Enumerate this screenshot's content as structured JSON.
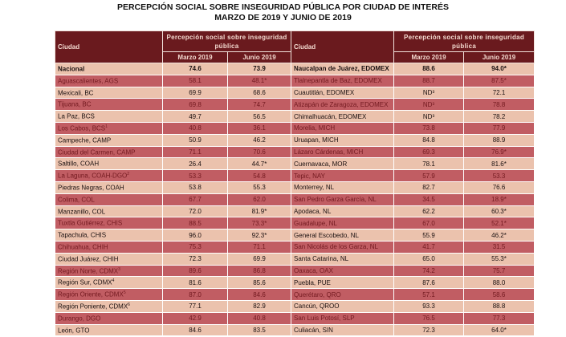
{
  "title": "PERCEPCIÓN SOCIAL SOBRE INSEGURIDAD PÚBLICA POR CIUDAD DE INTERÉS",
  "subtitle": "MARZO DE 2019 Y JUNIO DE 2019",
  "header": {
    "city": "Ciudad",
    "group": "Percepción social sobre inseguridad pública",
    "march": "Marzo 2019",
    "june": "Junio 2019"
  },
  "colors": {
    "header_bg": "#6a1a1e",
    "row_light": "#ebc2ad",
    "row_dark": "#c15d63"
  },
  "left_rows": [
    {
      "city": "Nacional",
      "sup": "",
      "march": "74.6",
      "june": "73.9"
    },
    {
      "city": "Aguascalientes, AGS",
      "sup": "",
      "march": "58.1",
      "june": "48.1*"
    },
    {
      "city": "Mexicali, BC",
      "sup": "",
      "march": "69.9",
      "june": "68.6"
    },
    {
      "city": "Tijuana, BC",
      "sup": "",
      "march": "69.8",
      "june": "74.7"
    },
    {
      "city": "La Paz, BCS",
      "sup": "",
      "march": "49.7",
      "june": "56.5"
    },
    {
      "city": "Los Cabos, BCS",
      "sup": "1",
      "march": "40.8",
      "june": "36.1"
    },
    {
      "city": "Campeche, CAMP",
      "sup": "",
      "march": "50.9",
      "june": "46.2"
    },
    {
      "city": "Ciudad del Carmen, CAMP",
      "sup": "",
      "march": "71.1",
      "june": "70.6"
    },
    {
      "city": "Saltillo, COAH",
      "sup": "",
      "march": "26.4",
      "june": "44.7*"
    },
    {
      "city": "La Laguna, COAH-DGO",
      "sup": "2",
      "march": "53.3",
      "june": "54.8"
    },
    {
      "city": "Piedras Negras, COAH",
      "sup": "",
      "march": "53.8",
      "june": "55.3"
    },
    {
      "city": "Colima, COL",
      "sup": "",
      "march": "67.7",
      "june": "62.0"
    },
    {
      "city": "Manzanillo, COL",
      "sup": "",
      "march": "72.0",
      "june": "81.9*"
    },
    {
      "city": "Tuxtla Gutiérrez, CHIS",
      "sup": "",
      "march": "88.5",
      "june": "73.3*"
    },
    {
      "city": "Tapachula, CHIS",
      "sup": "",
      "march": "96.0",
      "june": "92.3*"
    },
    {
      "city": "Chihuahua, CHIH",
      "sup": "",
      "march": "75.3",
      "june": "71.1"
    },
    {
      "city": "Ciudad Juárez, CHIH",
      "sup": "",
      "march": "72.3",
      "june": "69.9"
    },
    {
      "city": "Región Norte, CDMX",
      "sup": "3",
      "march": "89.6",
      "june": "86.8"
    },
    {
      "city": "Región Sur, CDMX",
      "sup": "4",
      "march": "81.6",
      "june": "85.6"
    },
    {
      "city": "Región Oriente, CDMX",
      "sup": "5",
      "march": "87.0",
      "june": "84.6"
    },
    {
      "city": "Región Poniente, CDMX",
      "sup": "6",
      "march": "77.1",
      "june": "82.9"
    },
    {
      "city": "Durango, DGO",
      "sup": "",
      "march": "42.9",
      "june": "40.8"
    },
    {
      "city": "León, GTO",
      "sup": "",
      "march": "84.6",
      "june": "83.5"
    }
  ],
  "right_rows": [
    {
      "city": "Naucalpan de Juárez, EDOMEX",
      "march": "88.6",
      "june": "94.0*"
    },
    {
      "city": "Tlalnepantla de Baz, EDOMEX",
      "march": "88.7",
      "june": "87.5*"
    },
    {
      "city": "Cuautitlán, EDOMEX",
      "march": "ND³",
      "june": "72.1"
    },
    {
      "city": "Atizapán de Zaragoza, EDOMEX",
      "march": "ND³",
      "june": "78.8"
    },
    {
      "city": "Chimalhuacán, EDOMEX",
      "march": "ND³",
      "june": "78.2"
    },
    {
      "city": "Morelia, MICH",
      "march": "73.8",
      "june": "77.9"
    },
    {
      "city": "Uruapan, MICH",
      "march": "84.8",
      "june": "88.9"
    },
    {
      "city": "Lázaro Cárdenas, MICH",
      "march": "69.3",
      "june": "76.9*"
    },
    {
      "city": "Cuernavaca, MOR",
      "march": "78.1",
      "june": "81.6*"
    },
    {
      "city": "Tepic, NAY",
      "march": "57.9",
      "june": "53.3"
    },
    {
      "city": "Monterrey, NL",
      "march": "82.7",
      "june": "76.6"
    },
    {
      "city": "San Pedro Garza García, NL",
      "march": "34.5",
      "june": "18.9*"
    },
    {
      "city": "Apodaca, NL",
      "march": "62.2",
      "june": "60.3*"
    },
    {
      "city": "Guadalupe, NL",
      "march": "67.0",
      "june": "52.1*"
    },
    {
      "city": "General Escobedo, NL",
      "march": "55.9",
      "june": "46.2*"
    },
    {
      "city": "San Nicolás de los Garza, NL",
      "march": "41.7",
      "june": "31.5"
    },
    {
      "city": "Santa Catarina, NL",
      "march": "65.0",
      "june": "55.3*"
    },
    {
      "city": "Oaxaca, OAX",
      "march": "74.2",
      "june": "75.7"
    },
    {
      "city": "Puebla, PUE",
      "march": "87.6",
      "june": "88.0"
    },
    {
      "city": "Querétaro, QRO",
      "march": "57.1",
      "june": "58.6"
    },
    {
      "city": "Cancún, QROO",
      "march": "93.3",
      "june": "88.8"
    },
    {
      "city": "San Luis Potosí, SLP",
      "march": "76.5",
      "june": "77.3"
    },
    {
      "city": "Culiacán, SIN",
      "march": "72.3",
      "june": "64.0*"
    }
  ]
}
